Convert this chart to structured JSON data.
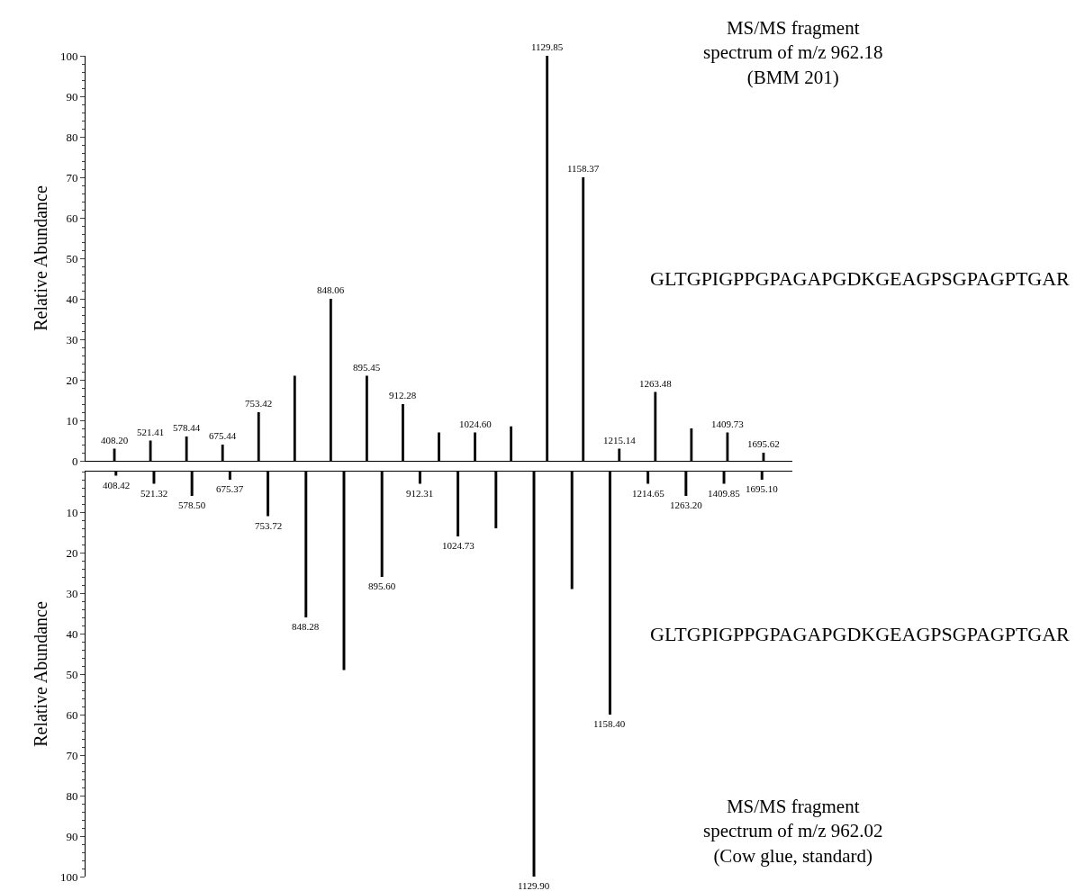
{
  "chart_data": [
    {
      "type": "bar",
      "ylabel": "Relative Abundance",
      "color": "#000000",
      "tick_labels": "y",
      "ylim": [
        0,
        100
      ],
      "yticks": [
        0,
        10,
        20,
        30,
        40,
        50,
        60,
        70,
        80,
        90,
        100
      ],
      "categories": [
        "408.20",
        "521.41",
        "578.44",
        "675.44",
        "753.42",
        null,
        "848.06",
        "895.45",
        "912.28",
        null,
        "1024.60",
        null,
        "1129.85",
        "1158.37",
        "1215.14",
        "1263.48",
        null,
        "1409.73",
        "1695.62"
      ],
      "values": [
        3,
        5,
        6,
        4,
        12,
        21,
        40,
        21,
        14,
        7,
        7,
        8.5,
        100,
        70,
        3,
        17,
        8,
        7,
        2
      ],
      "annotations": [
        "MS/MS fragment\nspectrum of m/z 962.18\n(BMM 201)",
        "GLTGPIGPPGPAGAPGDKGEAGPSGPAGPTGAR"
      ]
    },
    {
      "type": "bar",
      "ylabel": "Relative Abundance",
      "color": "#000000",
      "tick_labels": "y",
      "ylim": [
        100,
        0
      ],
      "yticks": [
        10,
        20,
        30,
        40,
        50,
        60,
        70,
        80,
        90,
        100
      ],
      "categories": [
        "408.42",
        "521.32",
        "578.50",
        "675.37",
        "753.72",
        "848.28",
        null,
        "895.60",
        "912.31",
        "1024.73",
        null,
        "1129.90",
        null,
        "1158.40",
        "1214.65",
        "1263.20",
        "1409.85",
        "1695.10"
      ],
      "values": [
        1,
        3,
        6,
        2,
        11,
        36,
        49,
        26,
        3,
        16,
        14,
        100,
        29,
        60,
        3,
        6,
        3,
        2
      ],
      "annotations": [
        "GLTGPIGPPGPAGAPGDKGEAGPSGPAGPTGAR",
        "MS/MS fragment\nspectrum of m/z 962.02\n(Cow glue, standard)"
      ]
    }
  ]
}
